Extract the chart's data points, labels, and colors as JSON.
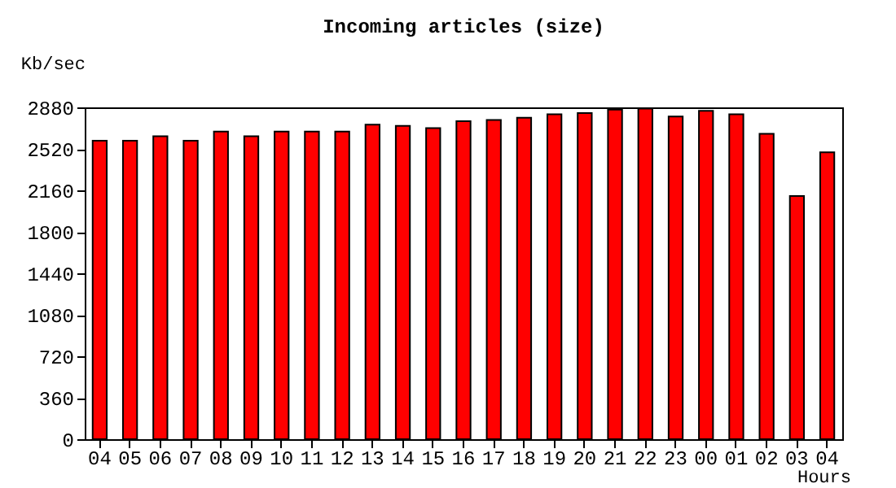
{
  "chart_data": {
    "type": "bar",
    "title": "Incoming articles (size)",
    "xlabel": "Hours",
    "ylabel": "Kb/sec",
    "categories": [
      "04",
      "05",
      "06",
      "07",
      "08",
      "09",
      "10",
      "11",
      "12",
      "13",
      "14",
      "15",
      "16",
      "17",
      "18",
      "19",
      "20",
      "21",
      "22",
      "23",
      "00",
      "01",
      "02",
      "03",
      "04"
    ],
    "series": [
      {
        "color": "#ff0000",
        "values": [
          2590,
          2590,
          2630,
          2590,
          2670,
          2630,
          2670,
          2670,
          2670,
          2730,
          2720,
          2700,
          2760,
          2770,
          2790,
          2820,
          2830,
          2860,
          2870,
          2800,
          2850,
          2820,
          2650,
          2110,
          2490
        ]
      }
    ],
    "ylim": [
      0,
      2880
    ],
    "yticks": [
      0,
      360,
      720,
      1080,
      1440,
      1800,
      2160,
      2520,
      2880
    ],
    "grid": false,
    "legend": false
  }
}
